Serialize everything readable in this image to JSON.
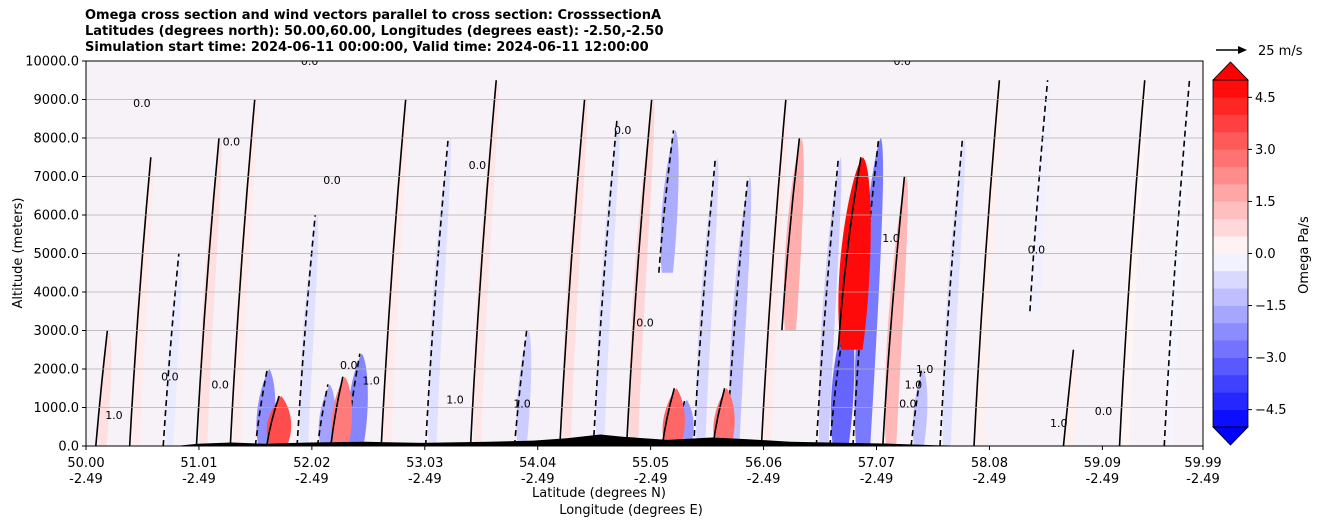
{
  "chart_data": {
    "type": "heatmap",
    "title_lines": [
      "Omega cross section and wind vectors parallel to cross section: CrosssectionA",
      "Latitudes (degrees north): 50.00,60.00, Longitudes (degrees east): -2.50,-2.50",
      "Simulation start time: 2024-06-11 00:00:00, Valid time: 2024-06-11 12:00:00"
    ],
    "xlabel_lines": [
      "Latitude (degrees N)",
      "Longitude (degrees E)"
    ],
    "ylabel": "Altitude (meters)",
    "ylim": [
      0,
      10000
    ],
    "xlim": [
      50.0,
      59.99
    ],
    "y_ticks": [
      {
        "value": 0,
        "label": "0.0"
      },
      {
        "value": 1000,
        "label": "1000.0"
      },
      {
        "value": 2000,
        "label": "2000.0"
      },
      {
        "value": 3000,
        "label": "3000.0"
      },
      {
        "value": 4000,
        "label": "4000.0"
      },
      {
        "value": 5000,
        "label": "5000.0"
      },
      {
        "value": 6000,
        "label": "6000.0"
      },
      {
        "value": 7000,
        "label": "7000.0"
      },
      {
        "value": 8000,
        "label": "8000.0"
      },
      {
        "value": 9000,
        "label": "9000.0"
      },
      {
        "value": 10000,
        "label": "10000.0"
      }
    ],
    "x_ticks": [
      {
        "lat": 50.0,
        "lat_label": "50.00",
        "lon_label": "-2.49"
      },
      {
        "lat": 51.01,
        "lat_label": "51.01",
        "lon_label": "-2.49"
      },
      {
        "lat": 52.02,
        "lat_label": "52.02",
        "lon_label": "-2.49"
      },
      {
        "lat": 53.03,
        "lat_label": "53.03",
        "lon_label": "-2.49"
      },
      {
        "lat": 54.04,
        "lat_label": "54.04",
        "lon_label": "-2.49"
      },
      {
        "lat": 55.05,
        "lat_label": "55.05",
        "lon_label": "-2.49"
      },
      {
        "lat": 56.06,
        "lat_label": "56.06",
        "lon_label": "-2.49"
      },
      {
        "lat": 57.07,
        "lat_label": "57.07",
        "lon_label": "-2.49"
      },
      {
        "lat": 58.08,
        "lat_label": "58.08",
        "lon_label": "-2.49"
      },
      {
        "lat": 59.09,
        "lat_label": "59.09",
        "lon_label": "-2.49"
      },
      {
        "lat": 59.99,
        "lat_label": "59.99",
        "lon_label": "-2.49"
      }
    ],
    "grid": "horizontal",
    "colorbar": {
      "label": "Omega Pa/s",
      "range": [
        -5.25,
        5.25
      ],
      "extend": "both",
      "ticks": [
        {
          "value": 4.5,
          "label": "4.5"
        },
        {
          "value": 3.0,
          "label": "3.0"
        },
        {
          "value": 1.5,
          "label": "1.5"
        },
        {
          "value": 0.0,
          "label": "0.0"
        },
        {
          "value": -1.5,
          "label": "−1.5"
        },
        {
          "value": -3.0,
          "label": "−3.0"
        },
        {
          "value": -4.5,
          "label": "−4.5"
        }
      ],
      "levels": [
        -5.0,
        -4.5,
        -4.0,
        -3.5,
        -3.0,
        -2.5,
        -2.0,
        -1.5,
        -1.0,
        -0.5,
        0.0,
        0.5,
        1.0,
        1.5,
        2.0,
        2.5,
        3.0,
        3.5,
        4.0,
        4.5,
        5.0
      ],
      "low_color": "#0000ff",
      "high_color": "#ff0000",
      "mid_color": "#ffffff"
    },
    "quiver_key": {
      "label": "25 m/s",
      "speed": 25
    },
    "omega_bands": [
      {
        "lat": 50.15,
        "bottom": 0,
        "top": 3000,
        "value": 0.6
      },
      {
        "lat": 50.45,
        "bottom": 0,
        "top": 7500,
        "value": 0.4
      },
      {
        "lat": 50.75,
        "bottom": 0,
        "top": 5000,
        "value": -0.4
      },
      {
        "lat": 51.05,
        "bottom": 0,
        "top": 8000,
        "value": 0.6
      },
      {
        "lat": 51.35,
        "bottom": 0,
        "top": 9000,
        "value": 0.4
      },
      {
        "lat": 51.6,
        "bottom": 0,
        "top": 2000,
        "value": -2.2
      },
      {
        "lat": 51.72,
        "bottom": 0,
        "top": 1300,
        "value": 3.5
      },
      {
        "lat": 51.95,
        "bottom": 0,
        "top": 6000,
        "value": -0.6
      },
      {
        "lat": 52.15,
        "bottom": 0,
        "top": 1600,
        "value": -1.8
      },
      {
        "lat": 52.28,
        "bottom": 0,
        "top": 1800,
        "value": 2.6
      },
      {
        "lat": 52.42,
        "bottom": 0,
        "top": 2400,
        "value": -2.4
      },
      {
        "lat": 52.7,
        "bottom": 0,
        "top": 9000,
        "value": 0.4
      },
      {
        "lat": 53.1,
        "bottom": 0,
        "top": 8000,
        "value": -0.6
      },
      {
        "lat": 53.5,
        "bottom": 0,
        "top": 9500,
        "value": 0.5
      },
      {
        "lat": 53.9,
        "bottom": 0,
        "top": 3000,
        "value": -1.0
      },
      {
        "lat": 54.3,
        "bottom": 0,
        "top": 9000,
        "value": 0.6
      },
      {
        "lat": 54.6,
        "bottom": 0,
        "top": 8500,
        "value": -0.6
      },
      {
        "lat": 54.9,
        "bottom": 0,
        "top": 9000,
        "value": 0.8
      },
      {
        "lat": 55.25,
        "bottom": 0,
        "top": 1500,
        "value": 3.0
      },
      {
        "lat": 55.35,
        "bottom": 0,
        "top": 1200,
        "value": -2.0
      },
      {
        "lat": 55.2,
        "bottom": 4500,
        "top": 8200,
        "value": -1.6
      },
      {
        "lat": 55.5,
        "bottom": 0,
        "top": 7500,
        "value": -0.8
      },
      {
        "lat": 55.7,
        "bottom": 0,
        "top": 1500,
        "value": 2.8
      },
      {
        "lat": 55.8,
        "bottom": 0,
        "top": 7000,
        "value": -1.2
      },
      {
        "lat": 56.1,
        "bottom": 0,
        "top": 9000,
        "value": 0.4
      },
      {
        "lat": 56.3,
        "bottom": 3000,
        "top": 8000,
        "value": 1.6
      },
      {
        "lat": 56.6,
        "bottom": 0,
        "top": 7500,
        "value": -1.0
      },
      {
        "lat": 56.85,
        "bottom": 2500,
        "top": 7500,
        "value": 4.8
      },
      {
        "lat": 56.75,
        "bottom": 0,
        "top": 3500,
        "value": -3.0
      },
      {
        "lat": 56.95,
        "bottom": 0,
        "top": 8000,
        "value": -2.6
      },
      {
        "lat": 57.2,
        "bottom": 0,
        "top": 7000,
        "value": 1.4
      },
      {
        "lat": 57.45,
        "bottom": 0,
        "top": 2000,
        "value": -1.2
      },
      {
        "lat": 57.7,
        "bottom": 0,
        "top": 8000,
        "value": -0.6
      },
      {
        "lat": 58.0,
        "bottom": 0,
        "top": 9500,
        "value": 0.3
      },
      {
        "lat": 58.5,
        "bottom": 3500,
        "top": 9500,
        "value": -0.3
      },
      {
        "lat": 58.8,
        "bottom": 0,
        "top": 2500,
        "value": 0.3
      },
      {
        "lat": 59.3,
        "bottom": 0,
        "top": 9500,
        "value": 0.2
      },
      {
        "lat": 59.7,
        "bottom": 0,
        "top": 9500,
        "value": -0.2
      }
    ],
    "contour_labels": [
      {
        "lat": 50.25,
        "alt": 700,
        "text": "1.0"
      },
      {
        "lat": 50.75,
        "alt": 1700,
        "text": "0.0"
      },
      {
        "lat": 51.2,
        "alt": 1500,
        "text": "0.0"
      },
      {
        "lat": 52.35,
        "alt": 2000,
        "text": "0.0"
      },
      {
        "lat": 52.55,
        "alt": 1600,
        "text": "1.0"
      },
      {
        "lat": 53.3,
        "alt": 1100,
        "text": "1.0"
      },
      {
        "lat": 53.9,
        "alt": 1000,
        "text": "1.0"
      },
      {
        "lat": 55.0,
        "alt": 3100,
        "text": "0.0"
      },
      {
        "lat": 57.2,
        "alt": 5300,
        "text": "1.0"
      },
      {
        "lat": 57.4,
        "alt": 1500,
        "text": "1.0"
      },
      {
        "lat": 57.35,
        "alt": 1000,
        "text": "0.0"
      },
      {
        "lat": 57.5,
        "alt": 1900,
        "text": "1.0"
      },
      {
        "lat": 58.7,
        "alt": 500,
        "text": "1.0"
      },
      {
        "lat": 59.1,
        "alt": 800,
        "text": "0.0"
      },
      {
        "lat": 52.0,
        "alt": 9900,
        "text": "0.0"
      },
      {
        "lat": 57.3,
        "alt": 9900,
        "text": "0.0"
      },
      {
        "lat": 50.5,
        "alt": 8800,
        "text": "0.0"
      },
      {
        "lat": 51.3,
        "alt": 7800,
        "text": "0.0"
      },
      {
        "lat": 52.2,
        "alt": 6800,
        "text": "0.0"
      },
      {
        "lat": 53.5,
        "alt": 7200,
        "text": "0.0"
      },
      {
        "lat": 54.8,
        "alt": 8100,
        "text": "0.0"
      },
      {
        "lat": 58.5,
        "alt": 5000,
        "text": "0.0"
      }
    ]
  }
}
